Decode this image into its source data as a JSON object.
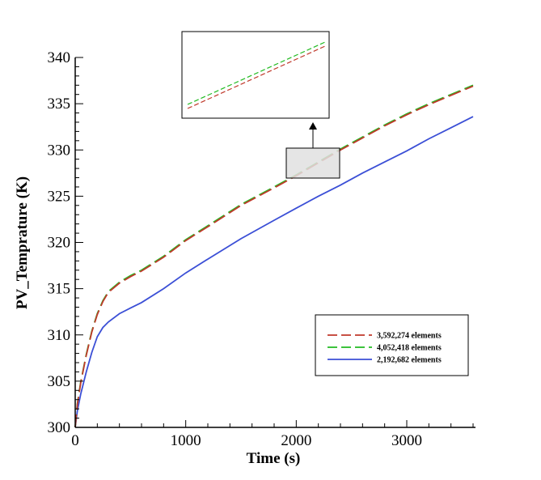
{
  "chart_data": {
    "type": "line",
    "title": "",
    "xlabel": "Time (s)",
    "ylabel": "PV_Temprature (K)",
    "xlim": [
      0,
      3600
    ],
    "ylim": [
      300,
      340
    ],
    "xticks": [
      0,
      1000,
      2000,
      3000
    ],
    "yticks": [
      300,
      305,
      310,
      315,
      320,
      325,
      330,
      335,
      340
    ],
    "grid": false,
    "legend_position": "bottom-right",
    "inset": "zoomed view of the region around t = 2000-2400 s",
    "series": [
      {
        "name": "3,592,274 elements",
        "color": "#c0392b",
        "dash": "dashed",
        "x": [
          0,
          20,
          50,
          100,
          150,
          200,
          250,
          300,
          400,
          500,
          600,
          800,
          1000,
          1200,
          1500,
          1800,
          2000,
          2200,
          2400,
          2600,
          2800,
          3000,
          3200,
          3400,
          3600
        ],
        "y": [
          300,
          302.5,
          304.8,
          307.8,
          310.3,
          312.2,
          313.6,
          314.6,
          315.6,
          316.3,
          316.9,
          318.4,
          320.2,
          321.7,
          324.0,
          325.9,
          327.2,
          328.6,
          330.0,
          331.3,
          332.6,
          333.8,
          334.9,
          335.9,
          336.9
        ]
      },
      {
        "name": "4,052,418 elements",
        "color": "#22bb22",
        "dash": "dashed",
        "x": [
          0,
          20,
          50,
          100,
          150,
          200,
          250,
          300,
          400,
          500,
          600,
          800,
          1000,
          1200,
          1500,
          1800,
          2000,
          2200,
          2400,
          2600,
          2800,
          3000,
          3200,
          3400,
          3600
        ],
        "y": [
          300,
          302.6,
          304.9,
          307.9,
          310.4,
          312.3,
          313.7,
          314.7,
          315.7,
          316.4,
          317.0,
          318.5,
          320.3,
          321.8,
          324.1,
          326.0,
          327.3,
          328.7,
          330.1,
          331.4,
          332.7,
          333.9,
          335.0,
          336.0,
          337.0
        ]
      },
      {
        "name": "2,192,682 elements",
        "color": "#3b4fd6",
        "dash": "solid",
        "x": [
          0,
          20,
          50,
          100,
          150,
          200,
          250,
          300,
          400,
          500,
          600,
          800,
          1000,
          1200,
          1500,
          1800,
          2000,
          2200,
          2400,
          2600,
          2800,
          3000,
          3200,
          3400,
          3600
        ],
        "y": [
          300,
          301.8,
          303.6,
          306.0,
          308.1,
          309.8,
          310.8,
          311.4,
          312.3,
          312.9,
          313.5,
          315.0,
          316.7,
          318.2,
          320.4,
          322.4,
          323.7,
          325.0,
          326.2,
          327.5,
          328.7,
          329.9,
          331.2,
          332.4,
          333.6
        ]
      }
    ]
  }
}
